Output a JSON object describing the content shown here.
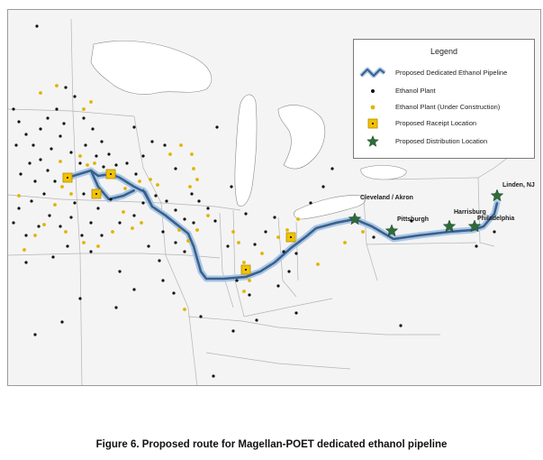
{
  "legend": {
    "title": "Legend",
    "items": [
      {
        "symbol": "pipeline-icon",
        "label": "Proposed Dedicated Ethanol Pipeline"
      },
      {
        "symbol": "black-dot-icon",
        "label": "Ethanol Plant"
      },
      {
        "symbol": "yellow-dot-icon",
        "label": "Ethanol Plant (Under Construction)"
      },
      {
        "symbol": "yellow-square-icon",
        "label": "Proposed Raceipt Location"
      },
      {
        "symbol": "green-star-icon",
        "label": "Proposed Distribution Location"
      }
    ]
  },
  "cities": [
    {
      "name": "Cleveland / Akron"
    },
    {
      "name": "Pittsburgh"
    },
    {
      "name": "Harrisburg"
    },
    {
      "name": "Philadelphia"
    },
    {
      "name": "Linden, NJ"
    }
  ],
  "caption": "Figure 6. Proposed route for Magellan-POET dedicated ethanol pipeline",
  "colors": {
    "pipeline": "#3a5f8a",
    "pipeline_glow": "#a9c6e6",
    "ethanol_plant": "#111111",
    "under_construction": "#e0b400",
    "receipt": "#f2c200",
    "distribution": "#2f6b3a",
    "water": "#ffffff",
    "land": "#f4f4f4",
    "border": "#9a9a9a"
  }
}
